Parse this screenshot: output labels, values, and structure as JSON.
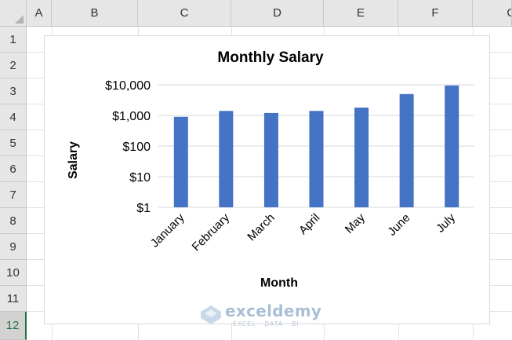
{
  "columns": [
    "A",
    "B",
    "C",
    "D",
    "E",
    "F",
    "G"
  ],
  "rows": [
    "1",
    "2",
    "3",
    "4",
    "5",
    "6",
    "7",
    "8",
    "9",
    "10",
    "11",
    "12"
  ],
  "selected_row": "12",
  "watermark": {
    "name": "exceldemy",
    "tagline": "EXCEL · DATA · BI"
  },
  "colors": {
    "bar": "#4472c4",
    "gridline": "#d9d9d9",
    "header_bg": "#e6e6e6",
    "selected_accent": "#217346"
  },
  "chart_data": {
    "type": "bar",
    "title": "Monthly Salary",
    "xlabel": "Month",
    "ylabel": "Salary",
    "yscale": "log",
    "ylim": [
      1,
      10000
    ],
    "yticks": [
      "$1",
      "$10",
      "$100",
      "$1,000",
      "$10,000"
    ],
    "categories": [
      "January",
      "February",
      "March",
      "April",
      "May",
      "June",
      "July"
    ],
    "values": [
      900,
      1400,
      1200,
      1400,
      1800,
      5000,
      9500
    ],
    "grid": true,
    "legend": "none"
  }
}
